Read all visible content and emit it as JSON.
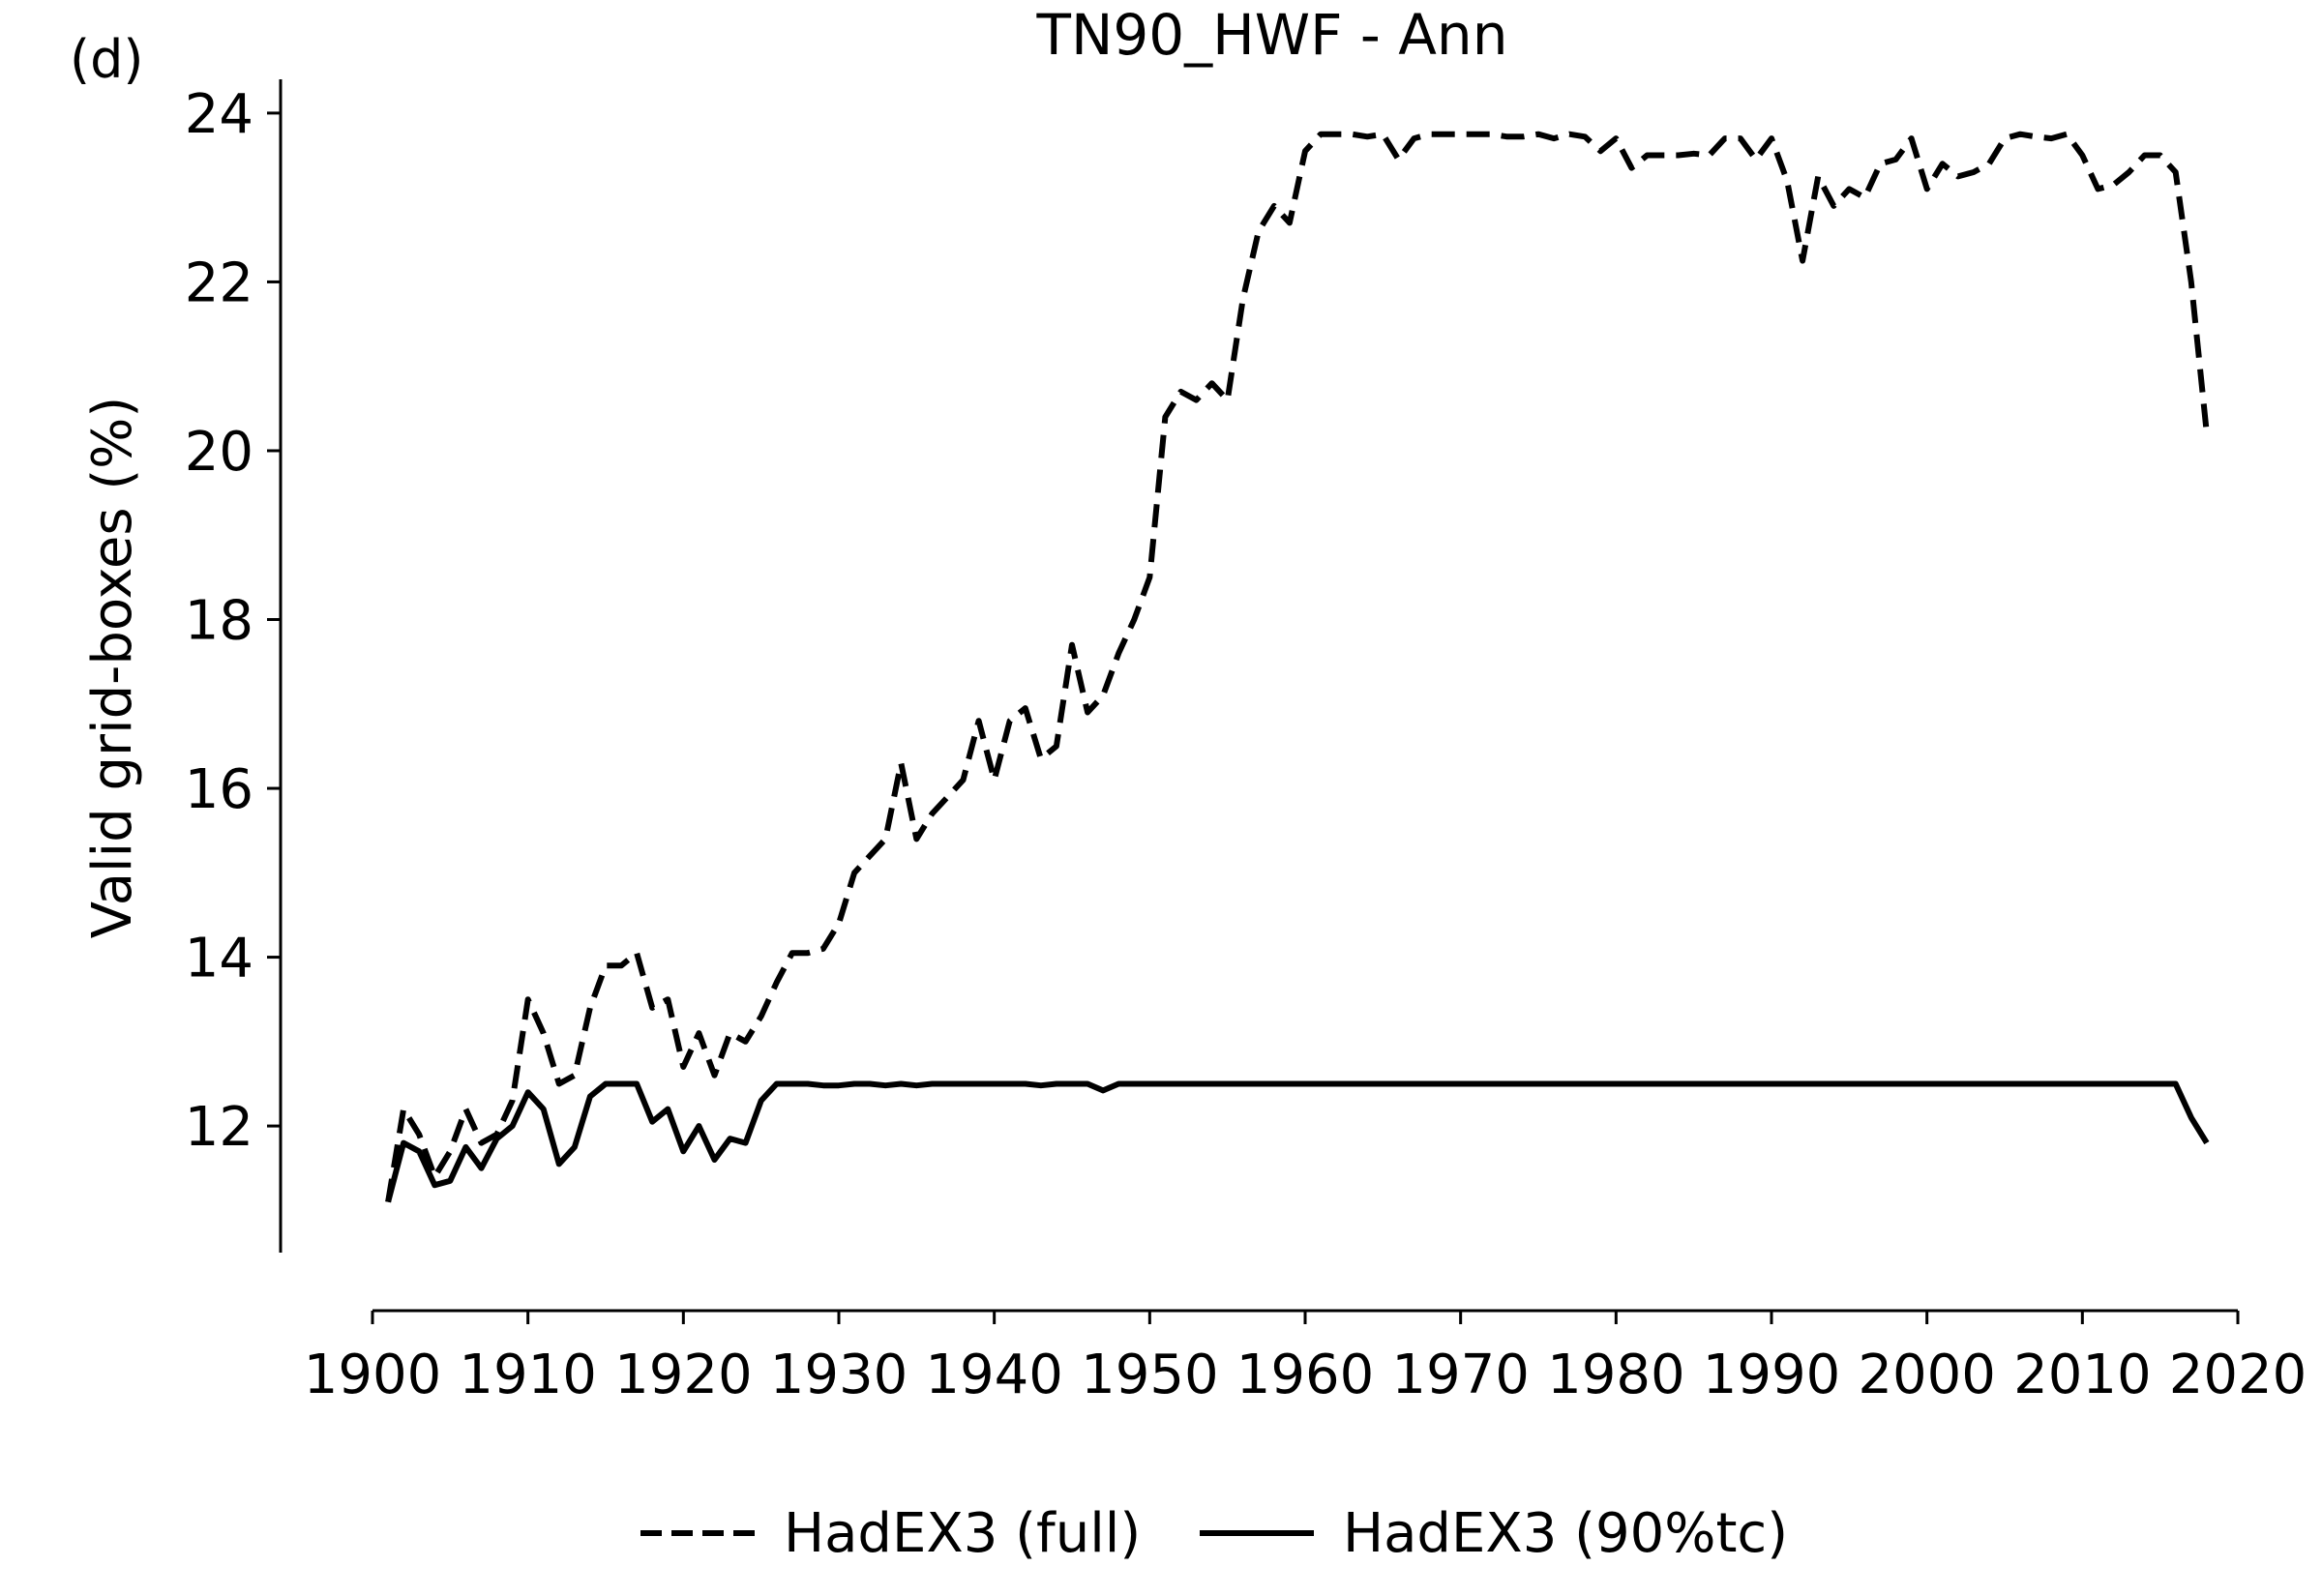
{
  "figure": {
    "panel_label": "(d)",
    "title": "TN90_HWF - Ann"
  },
  "chart_data": {
    "type": "line",
    "title": "TN90_HWF - Ann",
    "xlabel": "",
    "ylabel": "Valid grid-boxes (%)",
    "xlim": [
      1900,
      2020
    ],
    "ylim": [
      10.5,
      24.4
    ],
    "xticks": [
      1900,
      1910,
      1920,
      1930,
      1940,
      1950,
      1960,
      1970,
      1980,
      1990,
      2000,
      2010,
      2020
    ],
    "yticks": [
      12,
      14,
      16,
      18,
      20,
      22,
      24
    ],
    "grid": false,
    "legend_position": "bottom-center",
    "x": [
      1901,
      1902,
      1903,
      1904,
      1905,
      1906,
      1907,
      1908,
      1909,
      1910,
      1911,
      1912,
      1913,
      1914,
      1915,
      1916,
      1917,
      1918,
      1919,
      1920,
      1921,
      1922,
      1923,
      1924,
      1925,
      1926,
      1927,
      1928,
      1929,
      1930,
      1931,
      1932,
      1933,
      1934,
      1935,
      1936,
      1937,
      1938,
      1939,
      1940,
      1941,
      1942,
      1943,
      1944,
      1945,
      1946,
      1947,
      1948,
      1949,
      1950,
      1951,
      1952,
      1953,
      1954,
      1955,
      1956,
      1957,
      1958,
      1959,
      1960,
      1961,
      1962,
      1963,
      1964,
      1965,
      1966,
      1967,
      1968,
      1969,
      1970,
      1971,
      1972,
      1973,
      1974,
      1975,
      1976,
      1977,
      1978,
      1979,
      1980,
      1981,
      1982,
      1983,
      1984,
      1985,
      1986,
      1987,
      1988,
      1989,
      1990,
      1991,
      1992,
      1993,
      1994,
      1995,
      1996,
      1997,
      1998,
      1999,
      2000,
      2001,
      2002,
      2003,
      2004,
      2005,
      2006,
      2007,
      2008,
      2009,
      2010,
      2011,
      2012,
      2013,
      2014,
      2015,
      2016,
      2017,
      2018
    ],
    "series": [
      {
        "name": "HadEX3 (full)",
        "style": "dashed",
        "color": "#000000",
        "values": [
          11.1,
          12.2,
          11.9,
          11.4,
          11.7,
          12.2,
          11.8,
          11.9,
          12.3,
          13.5,
          13.1,
          12.5,
          12.6,
          13.4,
          13.9,
          13.9,
          14.05,
          13.4,
          13.5,
          12.7,
          13.1,
          12.6,
          13.1,
          13.0,
          13.3,
          13.7,
          14.05,
          14.05,
          14.1,
          14.4,
          15.0,
          15.2,
          15.4,
          16.3,
          15.4,
          15.7,
          15.9,
          16.1,
          16.8,
          16.1,
          16.8,
          16.95,
          16.35,
          16.5,
          17.7,
          16.9,
          17.1,
          17.6,
          18.0,
          18.5,
          20.4,
          20.7,
          20.6,
          20.8,
          20.6,
          21.8,
          22.6,
          22.9,
          22.7,
          23.55,
          23.75,
          23.75,
          23.75,
          23.72,
          23.75,
          23.45,
          23.7,
          23.75,
          23.75,
          23.75,
          23.75,
          23.75,
          23.72,
          23.72,
          23.75,
          23.7,
          23.75,
          23.72,
          23.55,
          23.7,
          23.35,
          23.5,
          23.5,
          23.5,
          23.52,
          23.5,
          23.7,
          23.7,
          23.45,
          23.7,
          23.2,
          22.25,
          23.25,
          22.9,
          23.1,
          23.0,
          23.4,
          23.45,
          23.7,
          23.1,
          23.4,
          23.25,
          23.3,
          23.4,
          23.7,
          23.75,
          23.72,
          23.7,
          23.75,
          23.5,
          23.1,
          23.15,
          23.3,
          23.5,
          23.5,
          23.3,
          22.0,
          20.2
        ]
      },
      {
        "name": "HadEX3 (90%tc)",
        "style": "solid",
        "color": "#000000",
        "values": [
          11.1,
          11.8,
          11.7,
          11.3,
          11.35,
          11.75,
          11.5,
          11.85,
          12.0,
          12.4,
          12.2,
          11.55,
          11.75,
          12.35,
          12.5,
          12.5,
          12.5,
          12.05,
          12.2,
          11.7,
          12.0,
          11.6,
          11.85,
          11.8,
          12.3,
          12.5,
          12.5,
          12.5,
          12.48,
          12.48,
          12.5,
          12.5,
          12.48,
          12.5,
          12.48,
          12.5,
          12.5,
          12.5,
          12.5,
          12.5,
          12.5,
          12.5,
          12.48,
          12.5,
          12.5,
          12.5,
          12.42,
          12.5,
          12.5,
          12.5,
          12.5,
          12.5,
          12.5,
          12.5,
          12.5,
          12.5,
          12.5,
          12.5,
          12.5,
          12.5,
          12.5,
          12.5,
          12.5,
          12.5,
          12.5,
          12.5,
          12.5,
          12.5,
          12.5,
          12.5,
          12.5,
          12.5,
          12.5,
          12.5,
          12.5,
          12.5,
          12.5,
          12.5,
          12.5,
          12.5,
          12.5,
          12.5,
          12.5,
          12.5,
          12.5,
          12.5,
          12.5,
          12.5,
          12.5,
          12.5,
          12.5,
          12.5,
          12.5,
          12.5,
          12.5,
          12.5,
          12.5,
          12.5,
          12.5,
          12.5,
          12.5,
          12.5,
          12.5,
          12.5,
          12.5,
          12.5,
          12.5,
          12.5,
          12.5,
          12.5,
          12.5,
          12.5,
          12.5,
          12.5,
          12.5,
          12.5,
          12.1,
          11.8
        ]
      }
    ]
  }
}
